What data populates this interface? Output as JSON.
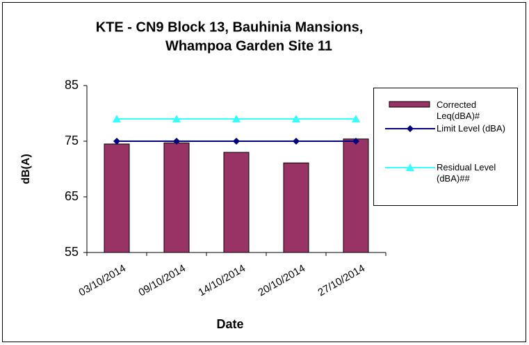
{
  "chart_data": {
    "type": "bar",
    "title": [
      "KTE - CN9 Block 13, Bauhinia Mansions,",
      "Whampoa Garden Site 11"
    ],
    "x_label": "Date",
    "y_label": "dB(A)",
    "categories": [
      "03/10/2014",
      "09/10/2014",
      "14/10/2014",
      "20/10/2014",
      "27/10/2014"
    ],
    "series": [
      {
        "name": "Corrected Leq(dBA)#",
        "type": "bar",
        "color": "#993366",
        "values": [
          74.5,
          74.7,
          73.0,
          71.1,
          75.4
        ]
      },
      {
        "name": "Limit Level (dBA)",
        "type": "line",
        "marker": "diamond",
        "color": "#000080",
        "values": [
          75,
          75,
          75,
          75,
          75
        ]
      },
      {
        "name": "Residual Level (dBA)##",
        "type": "line",
        "marker": "triangle",
        "color": "#33ffff",
        "values": [
          79,
          79,
          79,
          79,
          79
        ]
      }
    ],
    "ylim": [
      55,
      85
    ],
    "yticks": [
      55,
      65,
      75,
      85
    ],
    "grid": false,
    "legend": "right"
  }
}
